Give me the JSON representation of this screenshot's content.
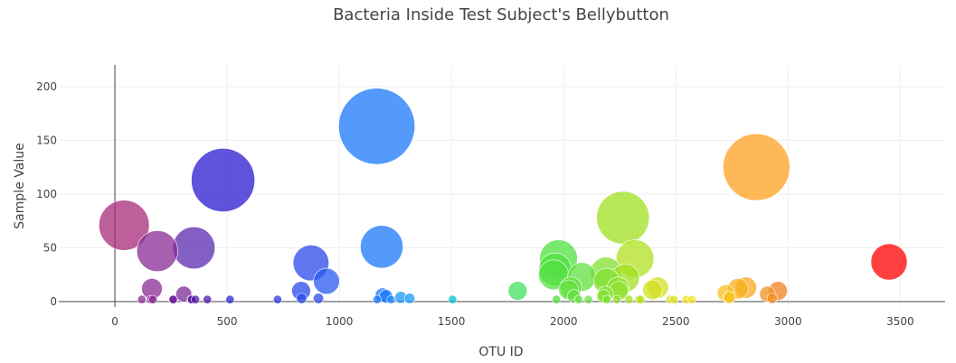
{
  "chart_data": {
    "type": "scatter",
    "title": "Bacteria Inside Test Subject's Bellybutton",
    "xlabel": "OTU ID",
    "ylabel": "Sample Value",
    "xlim": [
      -250,
      3700
    ],
    "ylim": [
      -5,
      220
    ],
    "xticks": [
      0,
      500,
      1000,
      1500,
      2000,
      2500,
      3000,
      3500
    ],
    "yticks": [
      0,
      50,
      100,
      150,
      200
    ],
    "grid": true,
    "legend": "none",
    "colorscale": "rainbow",
    "points": [
      {
        "x": 41,
        "y": 71,
        "color": "#a52a7a"
      },
      {
        "x": 120,
        "y": 2,
        "color": "#8a2a94"
      },
      {
        "x": 160,
        "y": 2,
        "color": "#8a2a94"
      },
      {
        "x": 165,
        "y": 12,
        "color": "#8a2a94"
      },
      {
        "x": 170,
        "y": 2,
        "color": "#8a2a94"
      },
      {
        "x": 189,
        "y": 47,
        "color": "#8a2a94"
      },
      {
        "x": 258,
        "y": 2,
        "color": "#6a1a9a"
      },
      {
        "x": 260,
        "y": 2,
        "color": "#6a1a9a"
      },
      {
        "x": 307,
        "y": 7,
        "color": "#7a2a9a"
      },
      {
        "x": 340,
        "y": 2,
        "color": "#5a1aa0"
      },
      {
        "x": 342,
        "y": 2,
        "color": "#5a1aa0"
      },
      {
        "x": 352,
        "y": 50,
        "color": "#5a2ab0"
      },
      {
        "x": 359,
        "y": 2,
        "color": "#5a1aa0"
      },
      {
        "x": 412,
        "y": 2,
        "color": "#4a1aa8"
      },
      {
        "x": 482,
        "y": 113,
        "color": "#2a1ad0"
      },
      {
        "x": 513,
        "y": 2,
        "color": "#2a2ad0"
      },
      {
        "x": 725,
        "y": 2,
        "color": "#2a3ae0"
      },
      {
        "x": 830,
        "y": 10,
        "color": "#2a4ae8"
      },
      {
        "x": 832,
        "y": 3,
        "color": "#2a4ae8"
      },
      {
        "x": 874,
        "y": 36,
        "color": "#2a4ae8"
      },
      {
        "x": 907,
        "y": 3,
        "color": "#2a4ae8"
      },
      {
        "x": 943,
        "y": 19,
        "color": "#2a5af0"
      },
      {
        "x": 1167,
        "y": 163,
        "color": "#1a78fa"
      },
      {
        "x": 1169,
        "y": 2,
        "color": "#1a78fa"
      },
      {
        "x": 1189,
        "y": 51,
        "color": "#1a78fa"
      },
      {
        "x": 1193,
        "y": 6,
        "color": "#1a78fa"
      },
      {
        "x": 1208,
        "y": 5,
        "color": "#1a78fa"
      },
      {
        "x": 1231,
        "y": 2,
        "color": "#1a88fa"
      },
      {
        "x": 1274,
        "y": 4,
        "color": "#1a98f8"
      },
      {
        "x": 1314,
        "y": 3,
        "color": "#1a98f8"
      },
      {
        "x": 1505,
        "y": 2,
        "color": "#00c0d0"
      },
      {
        "x": 1795,
        "y": 10,
        "color": "#40e060"
      },
      {
        "x": 1955,
        "y": 25,
        "color": "#50e040"
      },
      {
        "x": 1962,
        "y": 30,
        "color": "#50e040"
      },
      {
        "x": 1968,
        "y": 2,
        "color": "#50e040"
      },
      {
        "x": 1977,
        "y": 40,
        "color": "#50e040"
      },
      {
        "x": 2022,
        "y": 11,
        "color": "#60e040"
      },
      {
        "x": 2032,
        "y": 13,
        "color": "#60e040"
      },
      {
        "x": 2046,
        "y": 5,
        "color": "#60e040"
      },
      {
        "x": 2067,
        "y": 2,
        "color": "#60e040"
      },
      {
        "x": 2081,
        "y": 23,
        "color": "#60e040"
      },
      {
        "x": 2110,
        "y": 2,
        "color": "#6ae040"
      },
      {
        "x": 2178,
        "y": 5,
        "color": "#80e030"
      },
      {
        "x": 2186,
        "y": 7,
        "color": "#80e030"
      },
      {
        "x": 2188,
        "y": 27,
        "color": "#80e030"
      },
      {
        "x": 2191,
        "y": 19,
        "color": "#80e030"
      },
      {
        "x": 2192,
        "y": 2,
        "color": "#80e030"
      },
      {
        "x": 2237,
        "y": 2,
        "color": "#90e030"
      },
      {
        "x": 2242,
        "y": 13,
        "color": "#90e030"
      },
      {
        "x": 2246,
        "y": 10,
        "color": "#90e030"
      },
      {
        "x": 2264,
        "y": 78,
        "color": "#a0e020"
      },
      {
        "x": 2275,
        "y": 22,
        "color": "#a0e020"
      },
      {
        "x": 2291,
        "y": 2,
        "color": "#a0e020"
      },
      {
        "x": 2318,
        "y": 40,
        "color": "#b0e020"
      },
      {
        "x": 2335,
        "y": 2,
        "color": "#b0e020"
      },
      {
        "x": 2343,
        "y": 2,
        "color": "#b0e020"
      },
      {
        "x": 2396,
        "y": 11,
        "color": "#d0e020"
      },
      {
        "x": 2419,
        "y": 13,
        "color": "#d0e020"
      },
      {
        "x": 2475,
        "y": 2,
        "color": "#e0e020"
      },
      {
        "x": 2491,
        "y": 2,
        "color": "#e0e020"
      },
      {
        "x": 2546,
        "y": 2,
        "color": "#f0e020"
      },
      {
        "x": 2571,
        "y": 2,
        "color": "#f0e020"
      },
      {
        "x": 2722,
        "y": 8,
        "color": "#f8c020"
      },
      {
        "x": 2737,
        "y": 4,
        "color": "#f8c020"
      },
      {
        "x": 2739,
        "y": 4,
        "color": "#f8c020"
      },
      {
        "x": 2777,
        "y": 12,
        "color": "#f8b020"
      },
      {
        "x": 2812,
        "y": 13,
        "color": "#f8a820"
      },
      {
        "x": 2859,
        "y": 125,
        "color": "#ffa020"
      },
      {
        "x": 2908,
        "y": 7,
        "color": "#f09020"
      },
      {
        "x": 2929,
        "y": 3,
        "color": "#f09020"
      },
      {
        "x": 2955,
        "y": 10,
        "color": "#f08020"
      },
      {
        "x": 3450,
        "y": 37,
        "color": "#ff0000"
      }
    ]
  }
}
